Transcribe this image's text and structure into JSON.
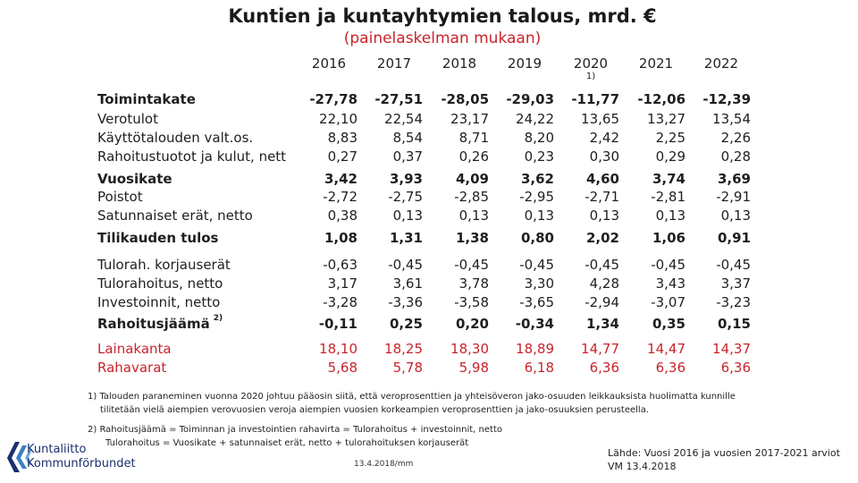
{
  "title": "Kuntien ja kuntayhtymien talous, mrd. €",
  "subtitle": "(painelaskelman mukaan)",
  "years": [
    "2016",
    "2017",
    "2018",
    "2019",
    "2020",
    "2021",
    "2022"
  ],
  "year_footnote": "1)",
  "rows": [
    {
      "label": "Toimintakate",
      "values": [
        "-27,78",
        "-27,51",
        "-28,05",
        "-29,03",
        "-11,77",
        "-12,06",
        "-12,39"
      ]
    },
    {
      "label": "Verotulot",
      "values": [
        "22,10",
        "22,54",
        "23,17",
        "24,22",
        "13,65",
        "13,27",
        "13,54"
      ]
    },
    {
      "label": "Käyttötalouden valt.os.",
      "values": [
        "8,83",
        "8,54",
        "8,71",
        "8,20",
        "2,42",
        "2,25",
        "2,26"
      ]
    },
    {
      "label": "Rahoitustuotot ja kulut, nett",
      "values": [
        "0,27",
        "0,37",
        "0,26",
        "0,23",
        "0,30",
        "0,29",
        "0,28"
      ]
    },
    {
      "label": "Vuosikate",
      "values": [
        "3,42",
        "3,93",
        "4,09",
        "3,62",
        "4,60",
        "3,74",
        "3,69"
      ]
    },
    {
      "label": "Poistot",
      "values": [
        "-2,72",
        "-2,75",
        "-2,85",
        "-2,95",
        "-2,71",
        "-2,81",
        "-2,91"
      ]
    },
    {
      "label": "Satunnaiset erät, netto",
      "values": [
        "0,38",
        "0,13",
        "0,13",
        "0,13",
        "0,13",
        "0,13",
        "0,13"
      ]
    },
    {
      "label": "Tilikauden tulos",
      "values": [
        "1,08",
        "1,31",
        "1,38",
        "0,80",
        "2,02",
        "1,06",
        "0,91"
      ]
    },
    {
      "label": "Tulorah. korjauserät",
      "values": [
        "-0,63",
        "-0,45",
        "-0,45",
        "-0,45",
        "-0,45",
        "-0,45",
        "-0,45"
      ]
    },
    {
      "label": "Tulorahoitus, netto",
      "values": [
        "3,17",
        "3,61",
        "3,78",
        "3,30",
        "4,28",
        "3,43",
        "3,37"
      ]
    },
    {
      "label": "Investoinnit, netto",
      "values": [
        "-3,28",
        "-3,36",
        "-3,58",
        "-3,65",
        "-2,94",
        "-3,07",
        "-3,23"
      ]
    },
    {
      "label": "Rahoitusjäämä",
      "sup": "2)",
      "values": [
        "-0,11",
        "0,25",
        "0,20",
        "-0,34",
        "1,34",
        "0,35",
        "0,15"
      ]
    },
    {
      "label": "Lainakanta",
      "values": [
        "18,10",
        "18,25",
        "18,30",
        "18,89",
        "14,77",
        "14,47",
        "14,37"
      ]
    },
    {
      "label": "Rahavarat",
      "values": [
        "5,68",
        "5,78",
        "5,98",
        "6,18",
        "6,36",
        "6,36",
        "6,36"
      ]
    }
  ],
  "footnotes": {
    "f1_line1": "1) Talouden paraneminen vuonna 2020 johtuu pääosin siitä, että veroprosenttien ja yhteisöveron jako-osuuden leikkauksista huolimatta kunnille",
    "f1_line2": "tilitetään vielä aiempien verovuosien veroja aiempien vuosien korkeampien veroprosenttien ja jako-osuuksien perusteella.",
    "f2_line1": "2) Rahoitusjäämä = Toiminnan ja investointien rahavirta = Tulorahoitus + investoinnit, netto",
    "f2_line2": "Tulorahoitus = Vuosikate + satunnaiset erät, netto + tulorahoituksen korjauserät"
  },
  "logo": {
    "line1": "Kuntaliitto",
    "line2": "Kommunförbundet"
  },
  "date": "13.4.2018/mm",
  "source": {
    "line1": "Lähde: Vuosi 2016 ja vuosien 2017-2021 arviot",
    "line2": "VM 13.4.2018"
  },
  "colors": {
    "accent_red": "#c8242b",
    "logo_blue": "#1b2f6e"
  }
}
